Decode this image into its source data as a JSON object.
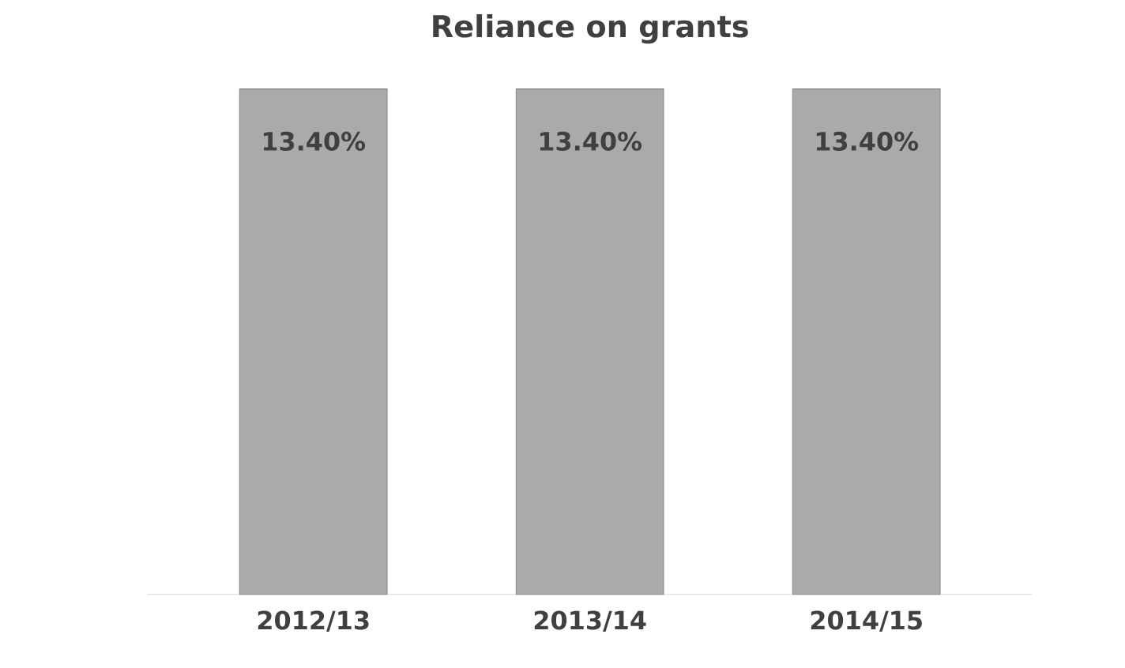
{
  "chart_data": {
    "type": "bar",
    "title": "Reliance on grants",
    "categories": [
      "2012/13",
      "2013/14",
      "2014/15"
    ],
    "values": [
      13.4,
      13.4,
      13.4
    ],
    "value_labels": [
      "13.40%",
      "13.40%",
      "13.40%"
    ],
    "color": "#a9aba9"
  }
}
